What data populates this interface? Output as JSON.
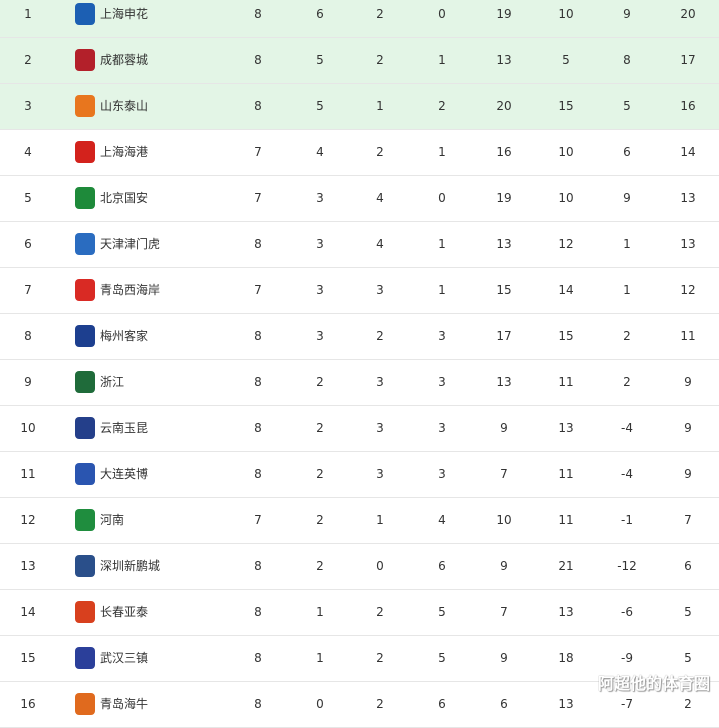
{
  "standings": [
    {
      "rank": "1",
      "team": "上海申花",
      "logo": "shenhua-logo",
      "color": "#1c5fb3",
      "stats": [
        "8",
        "6",
        "2",
        "0",
        "19",
        "10",
        "9",
        "20"
      ]
    },
    {
      "rank": "2",
      "team": "成都蓉城",
      "logo": "chengdu-logo",
      "color": "#b3202a",
      "stats": [
        "8",
        "5",
        "2",
        "1",
        "13",
        "5",
        "8",
        "17"
      ]
    },
    {
      "rank": "3",
      "team": "山东泰山",
      "logo": "taishan-logo",
      "color": "#e8761e",
      "stats": [
        "8",
        "5",
        "1",
        "2",
        "20",
        "15",
        "5",
        "16"
      ]
    },
    {
      "rank": "4",
      "team": "上海海港",
      "logo": "haigang-logo",
      "color": "#d3221c",
      "stats": [
        "7",
        "4",
        "2",
        "1",
        "16",
        "10",
        "6",
        "14"
      ]
    },
    {
      "rank": "5",
      "team": "北京国安",
      "logo": "guoan-logo",
      "color": "#1e8a3a",
      "stats": [
        "7",
        "3",
        "4",
        "0",
        "19",
        "10",
        "9",
        "13"
      ]
    },
    {
      "rank": "6",
      "team": "天津津门虎",
      "logo": "tianjin-logo",
      "color": "#2a6cc0",
      "stats": [
        "8",
        "3",
        "4",
        "1",
        "13",
        "12",
        "1",
        "13"
      ]
    },
    {
      "rank": "7",
      "team": "青岛西海岸",
      "logo": "xihaian-logo",
      "color": "#d92a24",
      "stats": [
        "7",
        "3",
        "3",
        "1",
        "15",
        "14",
        "1",
        "12"
      ]
    },
    {
      "rank": "8",
      "team": "梅州客家",
      "logo": "meizhou-logo",
      "color": "#1d3f8f",
      "stats": [
        "8",
        "3",
        "2",
        "3",
        "17",
        "15",
        "2",
        "11"
      ]
    },
    {
      "rank": "9",
      "team": "浙江",
      "logo": "zhejiang-logo",
      "color": "#1f6b3a",
      "stats": [
        "8",
        "2",
        "3",
        "3",
        "13",
        "11",
        "2",
        "9"
      ]
    },
    {
      "rank": "10",
      "team": "云南玉昆",
      "logo": "yunnan-logo",
      "color": "#243f8a",
      "stats": [
        "8",
        "2",
        "3",
        "3",
        "9",
        "13",
        "-4",
        "9"
      ]
    },
    {
      "rank": "11",
      "team": "大连英博",
      "logo": "dalian-logo",
      "color": "#2a55b0",
      "stats": [
        "8",
        "2",
        "3",
        "3",
        "7",
        "11",
        "-4",
        "9"
      ]
    },
    {
      "rank": "12",
      "team": "河南",
      "logo": "henan-logo",
      "color": "#1f8d3e",
      "stats": [
        "7",
        "2",
        "1",
        "4",
        "10",
        "11",
        "-1",
        "7"
      ]
    },
    {
      "rank": "13",
      "team": "深圳新鹏城",
      "logo": "shenzhen-logo",
      "color": "#2a4f8a",
      "stats": [
        "8",
        "2",
        "0",
        "6",
        "9",
        "21",
        "-12",
        "6"
      ]
    },
    {
      "rank": "14",
      "team": "长春亚泰",
      "logo": "changchun-logo",
      "color": "#d8401e",
      "stats": [
        "8",
        "1",
        "2",
        "5",
        "7",
        "13",
        "-6",
        "5"
      ]
    },
    {
      "rank": "15",
      "team": "武汉三镇",
      "logo": "wuhan-logo",
      "color": "#2b3f9a",
      "stats": [
        "8",
        "1",
        "2",
        "5",
        "9",
        "18",
        "-9",
        "5"
      ]
    },
    {
      "rank": "16",
      "team": "青岛海牛",
      "logo": "hainiu-logo",
      "color": "#e06a1e",
      "stats": [
        "8",
        "0",
        "2",
        "6",
        "6",
        "13",
        "-7",
        "2"
      ]
    }
  ],
  "watermark": "阿超他的体育圈",
  "highlight_color": "#e3f5e6"
}
